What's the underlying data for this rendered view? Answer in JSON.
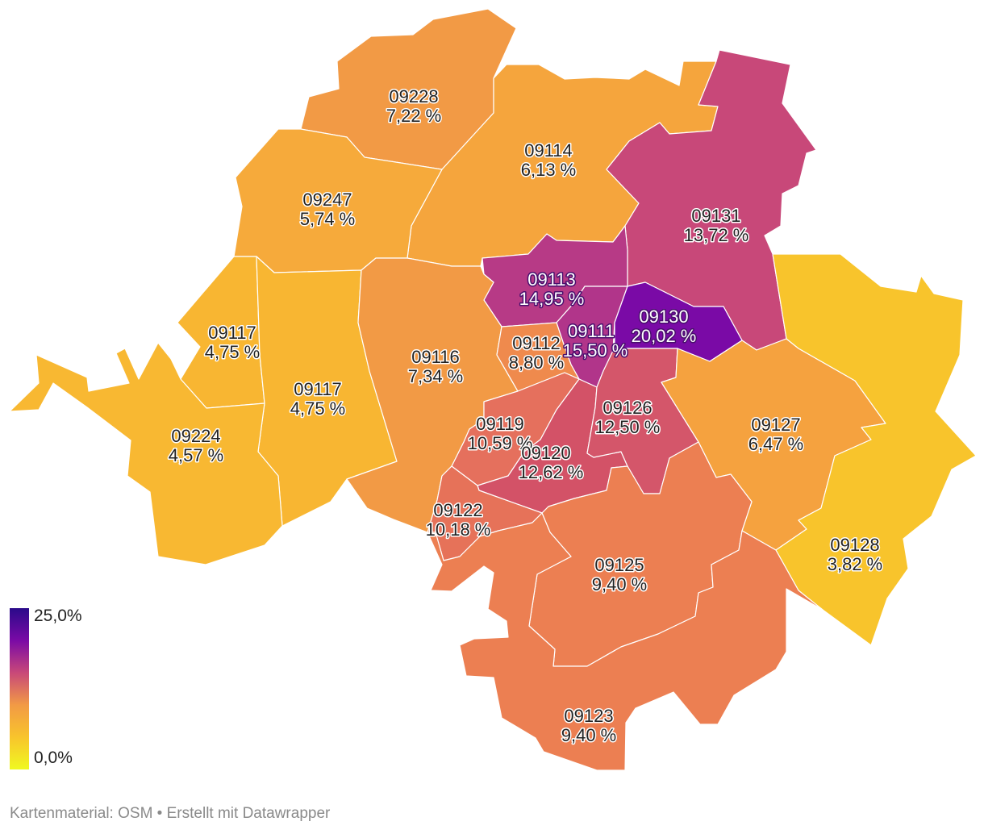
{
  "regions": [
    {
      "id": "09228",
      "value": 7.22,
      "value_label": "7,22 %",
      "color": "#f29a45"
    },
    {
      "id": "09114",
      "value": 6.13,
      "value_label": "6,13 %",
      "color": "#f5a53d"
    },
    {
      "id": "09247",
      "value": 5.74,
      "value_label": "5,74 %",
      "color": "#f6aa3b"
    },
    {
      "id": "09131",
      "value": 13.72,
      "value_label": "13,72 %",
      "color": "#c84879"
    },
    {
      "id": "09113",
      "value": 14.95,
      "value_label": "14,95 %",
      "color": "#b73a86"
    },
    {
      "id": "09111",
      "value": 15.5,
      "value_label": "15,50 %",
      "color": "#b1358a"
    },
    {
      "id": "09130",
      "value": 20.02,
      "value_label": "20,02 %",
      "color": "#7a0aa6"
    },
    {
      "id": "09117",
      "value": 4.75,
      "value_label": "4,75 %",
      "color": "#f8b632"
    },
    {
      "id": "09117",
      "value": 4.75,
      "value_label": "4,75 %",
      "color": "#f8b632"
    },
    {
      "id": "09116",
      "value": 7.34,
      "value_label": "7,34 %",
      "color": "#f29a45"
    },
    {
      "id": "09112",
      "value": 8.8,
      "value_label": "8,80 %",
      "color": "#ef8a4d"
    },
    {
      "id": "09224",
      "value": 4.57,
      "value_label": "4,57 %",
      "color": "#f8b832"
    },
    {
      "id": "09119",
      "value": 10.59,
      "value_label": "10,59 %",
      "color": "#e5705d"
    },
    {
      "id": "09120",
      "value": 12.62,
      "value_label": "12,62 %",
      "color": "#d35267"
    },
    {
      "id": "09126",
      "value": 12.5,
      "value_label": "12,50 %",
      "color": "#d4566a"
    },
    {
      "id": "09127",
      "value": 6.47,
      "value_label": "6,47 %",
      "color": "#f5a23f"
    },
    {
      "id": "09122",
      "value": 10.18,
      "value_label": "10,18 %",
      "color": "#e67259"
    },
    {
      "id": "09125",
      "value": 9.4,
      "value_label": "9,40 %",
      "color": "#ec7f52"
    },
    {
      "id": "09128",
      "value": 3.82,
      "value_label": "3,82 %",
      "color": "#f8c42c"
    },
    {
      "id": "09123",
      "value": 9.4,
      "value_label": "9,40 %",
      "color": "#ec7f52"
    }
  ],
  "legend": {
    "max_label": "25,0%",
    "min_label": "0,0%",
    "gradient_stops": [
      "#2a0a8a",
      "#7a0aa6",
      "#c84879",
      "#f29a45",
      "#f8c42c",
      "#f0f921"
    ]
  },
  "footer": {
    "source": "Kartenmaterial: OSM",
    "separator": " • ",
    "credit": "Erstellt mit Datawrapper"
  }
}
